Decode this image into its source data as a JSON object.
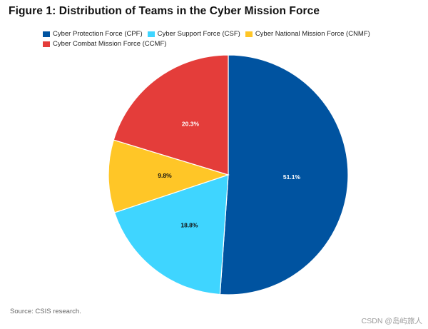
{
  "chart_data": {
    "type": "pie",
    "title": "Figure 1: Distribution of Teams in the Cyber Mission Force",
    "categories": [
      "Cyber Protection Force (CPF)",
      "Cyber Support Force (CSF)",
      "Cyber National Mission Force (CNMF)",
      "Cyber Combat Mission Force (CCMF)"
    ],
    "values": [
      51.1,
      18.8,
      9.8,
      20.3
    ],
    "labels": [
      "51.1%",
      "18.8%",
      "9.8%",
      "20.3%"
    ],
    "colors": [
      "#0053A0",
      "#3FD5FF",
      "#FFC627",
      "#E43D3A"
    ],
    "label_colors": [
      "#ffffff",
      "#111111",
      "#111111",
      "#ffffff"
    ],
    "legend_position": "top",
    "start": "top",
    "direction": "clockwise"
  },
  "source": "Source: CSIS research.",
  "watermark": "CSDN @岛屿旅人"
}
